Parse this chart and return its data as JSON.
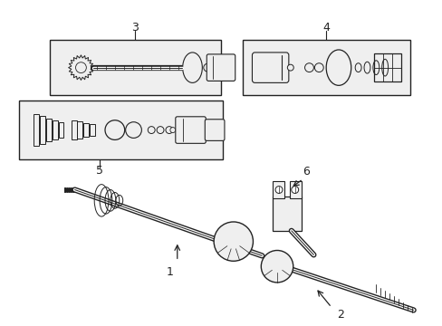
{
  "background_color": "#ffffff",
  "fig_width": 4.89,
  "fig_height": 3.6,
  "dpi": 100,
  "line_color": "#222222",
  "box_fill": "#efefef",
  "box_edge": "#222222",
  "label3": {
    "text": "3"
  },
  "label4": {
    "text": "4"
  },
  "label5": {
    "text": "5"
  },
  "label1": {
    "text": "1"
  },
  "label2": {
    "text": "2"
  },
  "label6": {
    "text": "6"
  }
}
